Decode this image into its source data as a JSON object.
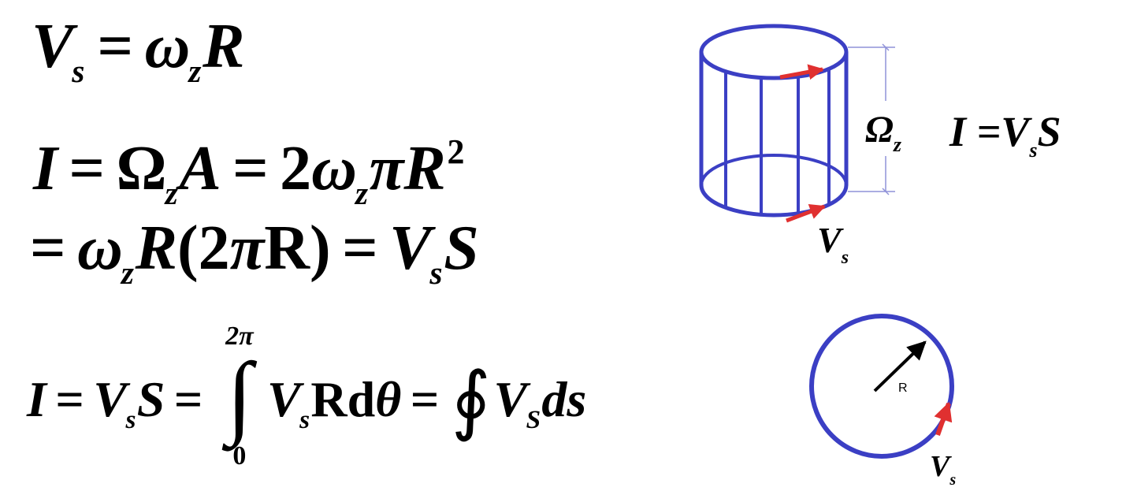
{
  "equations": {
    "eq1": {
      "lhs": "V",
      "lhs_sub": "s",
      "op": "=",
      "rhs_var": "ω",
      "rhs_sub": "z",
      "rhs_tail": "R"
    },
    "eq2": {
      "t1": "I",
      "op1": "=",
      "t2": "Ω",
      "t2_sub": "z",
      "t3": "A",
      "op2": "=",
      "t4": "2",
      "t5": "ω",
      "t5_sub": "z",
      "t6": "π",
      "t7": "R",
      "t7_sup": "2"
    },
    "eq3": {
      "op1": "=",
      "t1": "ω",
      "t1_sub": "z",
      "t2": "R",
      "t3": "(2",
      "t4": "π",
      "t5": "R)",
      "op2": "=",
      "t6": "V",
      "t6_sub": "s",
      "t7": "S"
    },
    "eq4": {
      "t1": "I",
      "op1": "=",
      "t2": "V",
      "t2_sub": "s",
      "t3": "S",
      "op2": "=",
      "int_symbol": "∫",
      "int_upper": "2π",
      "int_lower": "0",
      "t4": "V",
      "t4_sub": "s",
      "t5": "Rd",
      "t6": "θ",
      "op3": "=",
      "oint_symbol": "∮",
      "t7": "V",
      "t7_sub": "S",
      "t8": "ds"
    }
  },
  "cylinder_diagram": {
    "omega_label": "Ω",
    "omega_sub": "z",
    "formula": "I =V",
    "formula_sub": "s",
    "formula_tail": "S",
    "velocity_label": "V",
    "velocity_sub": "s"
  },
  "circle_diagram": {
    "radius_label": "R",
    "velocity_label": "V",
    "velocity_sub": "s"
  },
  "colors": {
    "outline": "#3b3fc4",
    "arrow_tangent": "#e03030",
    "dimension_line": "#8f92d8",
    "text": "#000000"
  }
}
